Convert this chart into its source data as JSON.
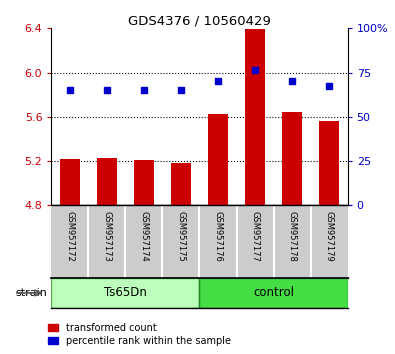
{
  "title": "GDS4376 / 10560429",
  "samples": [
    "GSM957172",
    "GSM957173",
    "GSM957174",
    "GSM957175",
    "GSM957176",
    "GSM957177",
    "GSM957178",
    "GSM957179"
  ],
  "group_labels": [
    "Ts65Dn",
    "control"
  ],
  "bar_values": [
    5.22,
    5.23,
    5.21,
    5.18,
    5.63,
    6.39,
    5.64,
    5.56
  ],
  "scatter_values": [
    5.84,
    5.84,
    5.84,
    5.84,
    5.92,
    6.02,
    5.92,
    5.88
  ],
  "bar_color": "#cc0000",
  "scatter_color": "#0000cc",
  "ylim_left": [
    4.8,
    6.4
  ],
  "ylim_right": [
    0,
    100
  ],
  "yticks_left": [
    4.8,
    5.2,
    5.6,
    6.0,
    6.4
  ],
  "yticks_right": [
    0,
    25,
    50,
    75,
    100
  ],
  "grid_values": [
    5.2,
    5.6,
    6.0
  ],
  "bar_width": 0.55,
  "ts_color": "#bbffbb",
  "ctrl_color": "#44dd44",
  "label_color_left": "#cc0000",
  "label_color_right": "#0000cc",
  "label_count": "transformed count",
  "label_percentile": "percentile rank within the sample",
  "strain_label": "strain",
  "xticklabel_bg": "#cccccc"
}
